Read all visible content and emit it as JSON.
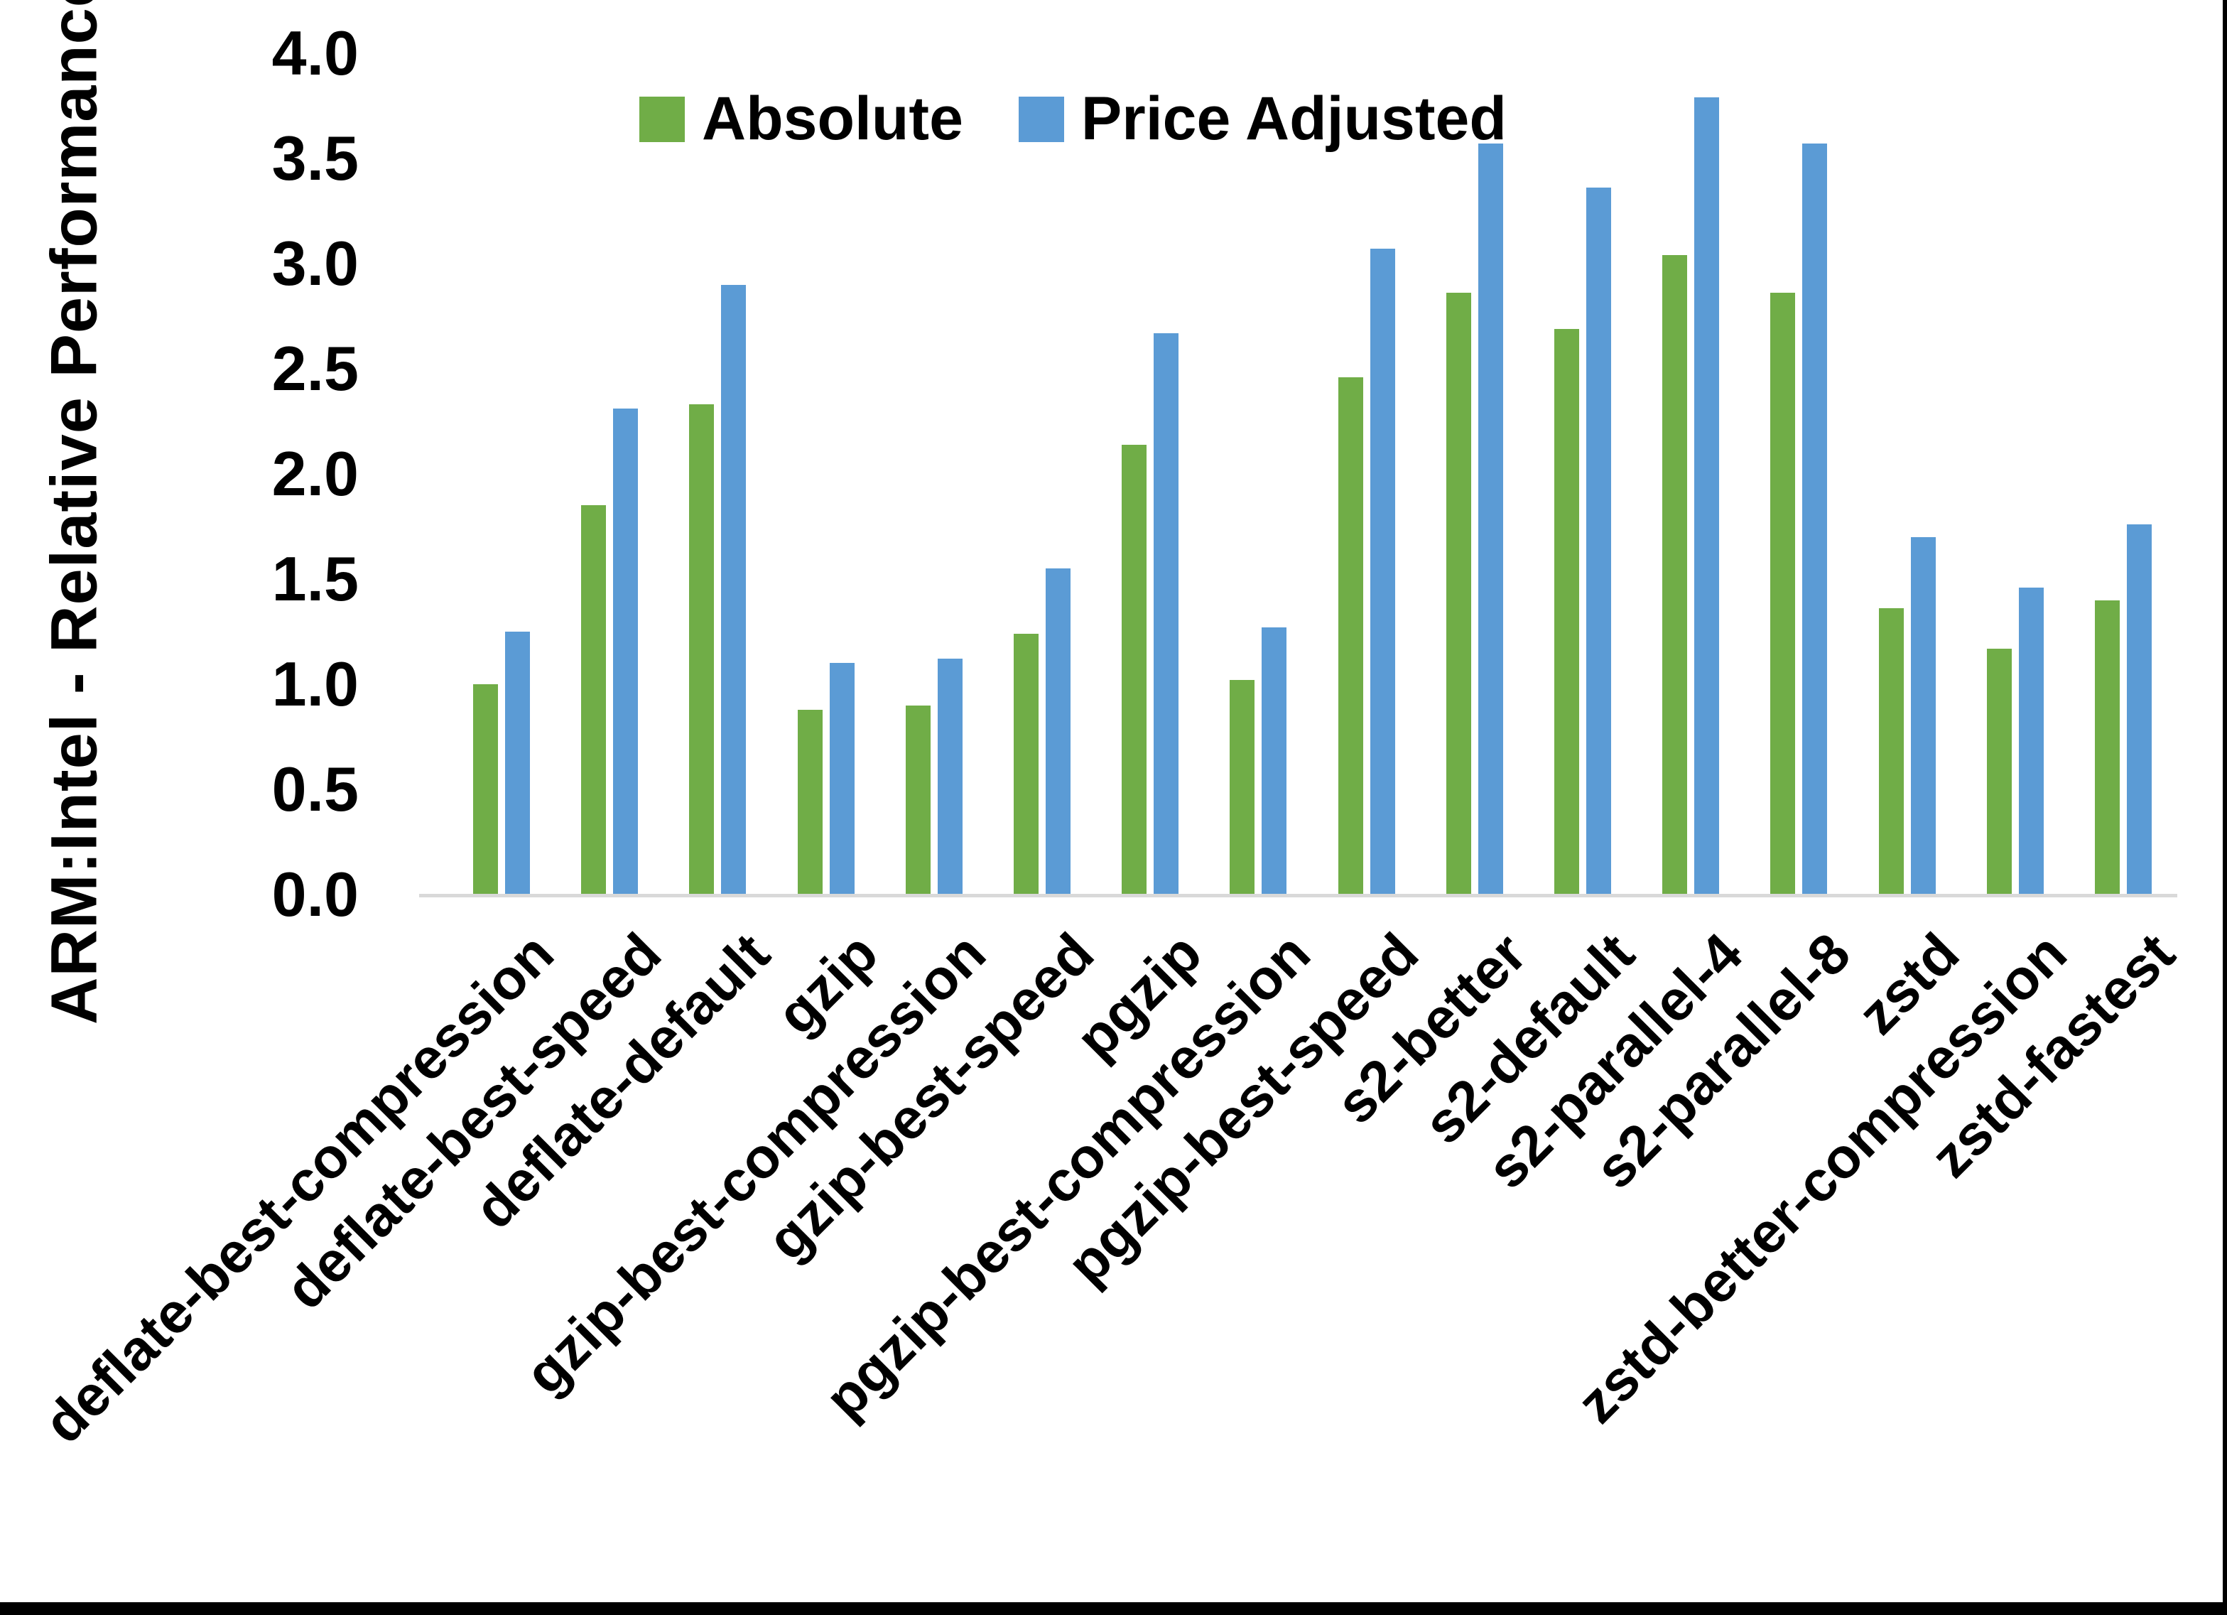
{
  "chart_data": {
    "type": "bar",
    "title": "",
    "xlabel": "",
    "ylabel": "ARM:Intel - Relative Performance",
    "ylim": [
      0.0,
      4.0
    ],
    "ytick_step": 0.5,
    "yticks": [
      "4.0",
      "3.5",
      "3.0",
      "2.5",
      "2.0",
      "1.5",
      "1.0",
      "0.5",
      "0.0"
    ],
    "grid": false,
    "legend_position": "top",
    "categories": [
      "deflate-best-compression",
      "deflate-best-speed",
      "deflate-default",
      "gzip",
      "gzip-best-compression",
      "gzip-best-speed",
      "pgzip",
      "pgzip-best-compression",
      "pgzip-best-speed",
      "s2-better",
      "s2-default",
      "s2-parallel-4",
      "s2-parallel-8",
      "zstd",
      "zstd-better-compression",
      "zstd-fastest"
    ],
    "series": [
      {
        "name": "Absolute",
        "color": "#70ad47",
        "values": [
          1.0,
          1.85,
          2.33,
          0.88,
          0.9,
          1.24,
          2.14,
          1.02,
          2.46,
          2.86,
          2.69,
          3.04,
          2.86,
          1.36,
          1.17,
          1.4
        ]
      },
      {
        "name": "Price Adjusted",
        "color": "#5b9bd5",
        "values": [
          1.25,
          2.31,
          2.9,
          1.1,
          1.12,
          1.55,
          2.67,
          1.27,
          3.07,
          3.57,
          3.36,
          3.79,
          3.57,
          1.7,
          1.46,
          1.76
        ]
      }
    ]
  },
  "colors": {
    "background": "#ffffff",
    "axis_line": "#d9d9d9",
    "text": "#000000",
    "frame_edge": "#000000"
  }
}
